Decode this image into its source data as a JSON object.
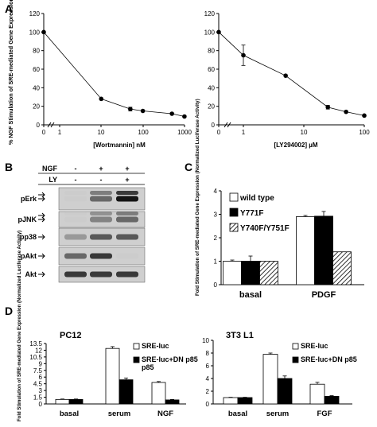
{
  "panels": {
    "A": "A",
    "B": "B",
    "C": "C",
    "D": "D"
  },
  "chart_data": [
    {
      "id": "A-left",
      "type": "line",
      "xlabel": "[Wortmannin] nM",
      "ylabel": "% NGF Stimulation of SRE-mediated Gene Expression",
      "x_scale": "log (with 0 on broken axis)",
      "xticks": [
        "0",
        "1",
        "10",
        "100",
        "1000"
      ],
      "yticks": [
        "0",
        "20",
        "40",
        "60",
        "80",
        "100",
        "120"
      ],
      "ylim": [
        0,
        120
      ],
      "x": [
        0,
        10,
        50,
        100,
        500,
        1000
      ],
      "y": [
        100,
        28,
        17,
        15,
        12,
        9
      ],
      "err": [
        0,
        0,
        2,
        0,
        0,
        0
      ]
    },
    {
      "id": "A-right",
      "type": "line",
      "xlabel": "[LY294002] µM",
      "ylabel": "",
      "x_scale": "log (with 0 on broken axis)",
      "xticks": [
        "0",
        "1",
        "10",
        "100"
      ],
      "yticks": [
        "0",
        "20",
        "40",
        "60",
        "80",
        "100",
        "120"
      ],
      "ylim": [
        0,
        120
      ],
      "x": [
        0,
        1,
        5,
        25,
        50,
        100
      ],
      "y": [
        100,
        75,
        53,
        19,
        14,
        10
      ],
      "err": [
        0,
        11,
        0,
        2,
        0,
        0
      ]
    },
    {
      "id": "C",
      "type": "bar",
      "ylabel": "Fold Stimulation of SRE-mediated Gene Expression (Normalized Luciferase Activity)",
      "categories": [
        "basal",
        "PDGF"
      ],
      "yticks": [
        "0",
        "1",
        "2",
        "3",
        "4"
      ],
      "ylim": [
        0,
        4
      ],
      "series": [
        {
          "name": "wild type",
          "values": [
            1.0,
            2.9
          ],
          "err": [
            0.05,
            0.05
          ]
        },
        {
          "name": "Y771F",
          "values": [
            1.0,
            2.92
          ],
          "err": [
            0.22,
            0.2
          ]
        },
        {
          "name": "Y740F/Y751F",
          "values": [
            1.0,
            1.4
          ],
          "err": [
            0,
            0
          ]
        }
      ]
    },
    {
      "id": "D-left",
      "type": "bar",
      "title": "PC12",
      "ylabel": "Fold Stimulation of SRE-mediated Gene Expression (Normalized Luciferase Activity)",
      "categories": [
        "basal",
        "serum",
        "NGF"
      ],
      "yticks": [
        "0",
        "1.5",
        "3",
        "4.5",
        "6",
        "7.5",
        "9",
        "10.5",
        "12",
        "13.5"
      ],
      "ylim": [
        0,
        13.5
      ],
      "series": [
        {
          "name": "SRE-luc",
          "values": [
            1.0,
            12.4,
            4.8
          ],
          "err": [
            0.1,
            0.4,
            0.2
          ]
        },
        {
          "name": "SRE-luc+DN p85",
          "values": [
            1.0,
            5.4,
            0.9
          ],
          "err": [
            0.1,
            0.4,
            0.1
          ]
        }
      ]
    },
    {
      "id": "D-right",
      "type": "bar",
      "title": "3T3 L1",
      "categories": [
        "basal",
        "serum",
        "FGF"
      ],
      "yticks": [
        "0",
        "2",
        "4",
        "6",
        "8",
        "10"
      ],
      "ylim": [
        0,
        10
      ],
      "series": [
        {
          "name": "SRE-luc",
          "values": [
            1.0,
            7.8,
            3.1
          ],
          "err": [
            0.05,
            0.2,
            0.3
          ]
        },
        {
          "name": "SRE-luc+DN p85",
          "values": [
            1.0,
            4.0,
            1.2
          ],
          "err": [
            0.05,
            0.4,
            0.1
          ]
        }
      ]
    }
  ],
  "blot": {
    "header_rows": [
      {
        "label": "NGF",
        "values": [
          "-",
          "+",
          "+"
        ]
      },
      {
        "label": "LY",
        "values": [
          "-",
          "-",
          "+"
        ]
      }
    ],
    "rows": [
      "pErk",
      "pJNK",
      "pp38",
      "pAkt",
      "Akt"
    ],
    "band_intensity": [
      [
        0.05,
        0.7,
        0.95
      ],
      [
        0.05,
        0.6,
        0.7
      ],
      [
        0.5,
        0.75,
        0.75
      ],
      [
        0.7,
        0.85,
        0.05
      ],
      [
        0.85,
        0.85,
        0.85
      ]
    ]
  },
  "colors": {
    "bar_open": "#ffffff",
    "bar_solid": "#000000",
    "hatch": "#000000",
    "line": "#000000"
  }
}
